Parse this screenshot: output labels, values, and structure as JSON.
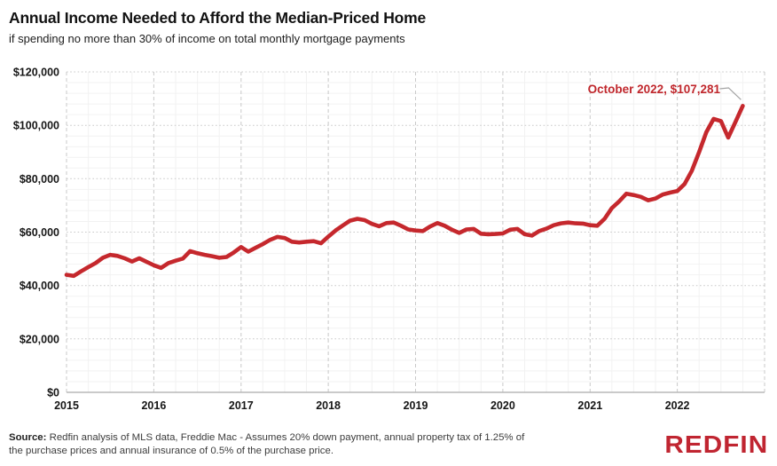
{
  "header": {
    "title": "Annual Income Needed to Afford the Median-Priced Home",
    "subtitle": "if spending no more than 30% of income on total monthly mortgage payments"
  },
  "annotation": {
    "label": "October 2022, $107,281"
  },
  "footer": {
    "source_label": "Source:",
    "source_text": " Redfin analysis of MLS data, Freddie Mac - Assumes 20% down payment, annual property tax of 1.25% of the purchase prices and annual insurance of 0.5% of the purchase price.",
    "logo_text": "REDFIN"
  },
  "colors": {
    "line": "#c5282d",
    "annotation_text": "#c0272c",
    "logo": "#c02531",
    "connector": "#a3a3a3",
    "grid_major": "#c9c9c9",
    "grid_minor": "#f2f2f2",
    "axis_line": "#b8b8b8",
    "tick_text": "#161616"
  },
  "chart_data": {
    "type": "line",
    "title": "Annual Income Needed to Afford the Median-Priced Home",
    "subtitle": "if spending no more than 30% of income on total monthly mortgage payments",
    "x_range": [
      "2015-01",
      "2022-10"
    ],
    "x_axis_span_months": 96,
    "x_tick_labels": [
      "2015",
      "2016",
      "2017",
      "2018",
      "2019",
      "2020",
      "2021",
      "2022"
    ],
    "y_tick_labels": [
      "$0",
      "$20,000",
      "$40,000",
      "$60,000",
      "$80,000",
      "$100,000",
      "$120,000"
    ],
    "ylim": [
      0,
      120000
    ],
    "y_major_step": 20000,
    "y_minor_step": 4000,
    "x_minor_step_months": 3,
    "grid": true,
    "legend": false,
    "annotation": {
      "x": "2022-10",
      "y": 107281,
      "text": "October 2022, $107,281"
    },
    "series": [
      {
        "name": "Annual income needed to afford the median-priced home",
        "frequency": "monthly",
        "values": [
          44000,
          43600,
          45300,
          46900,
          48400,
          50400,
          51500,
          51100,
          50200,
          49000,
          50200,
          48900,
          47600,
          46600,
          48400,
          49300,
          50100,
          52900,
          52100,
          51500,
          51000,
          50400,
          50700,
          52400,
          54400,
          52700,
          54100,
          55500,
          57100,
          58200,
          57800,
          56400,
          56100,
          56400,
          56600,
          55800,
          58300,
          60600,
          62500,
          64300,
          65000,
          64500,
          63100,
          62200,
          63400,
          63600,
          62400,
          61000,
          60600,
          60400,
          62100,
          63400,
          62400,
          60900,
          59700,
          61000,
          61200,
          59400,
          59200,
          59300,
          59500,
          60900,
          61200,
          59200,
          58700,
          60400,
          61300,
          62600,
          63300,
          63600,
          63300,
          63200,
          62600,
          62400,
          65000,
          69000,
          71500,
          74400,
          73900,
          73200,
          71900,
          72600,
          74100,
          74800,
          75400,
          78000,
          83000,
          90000,
          97500,
          102400,
          101600,
          95400,
          101300,
          107281
        ]
      }
    ]
  }
}
